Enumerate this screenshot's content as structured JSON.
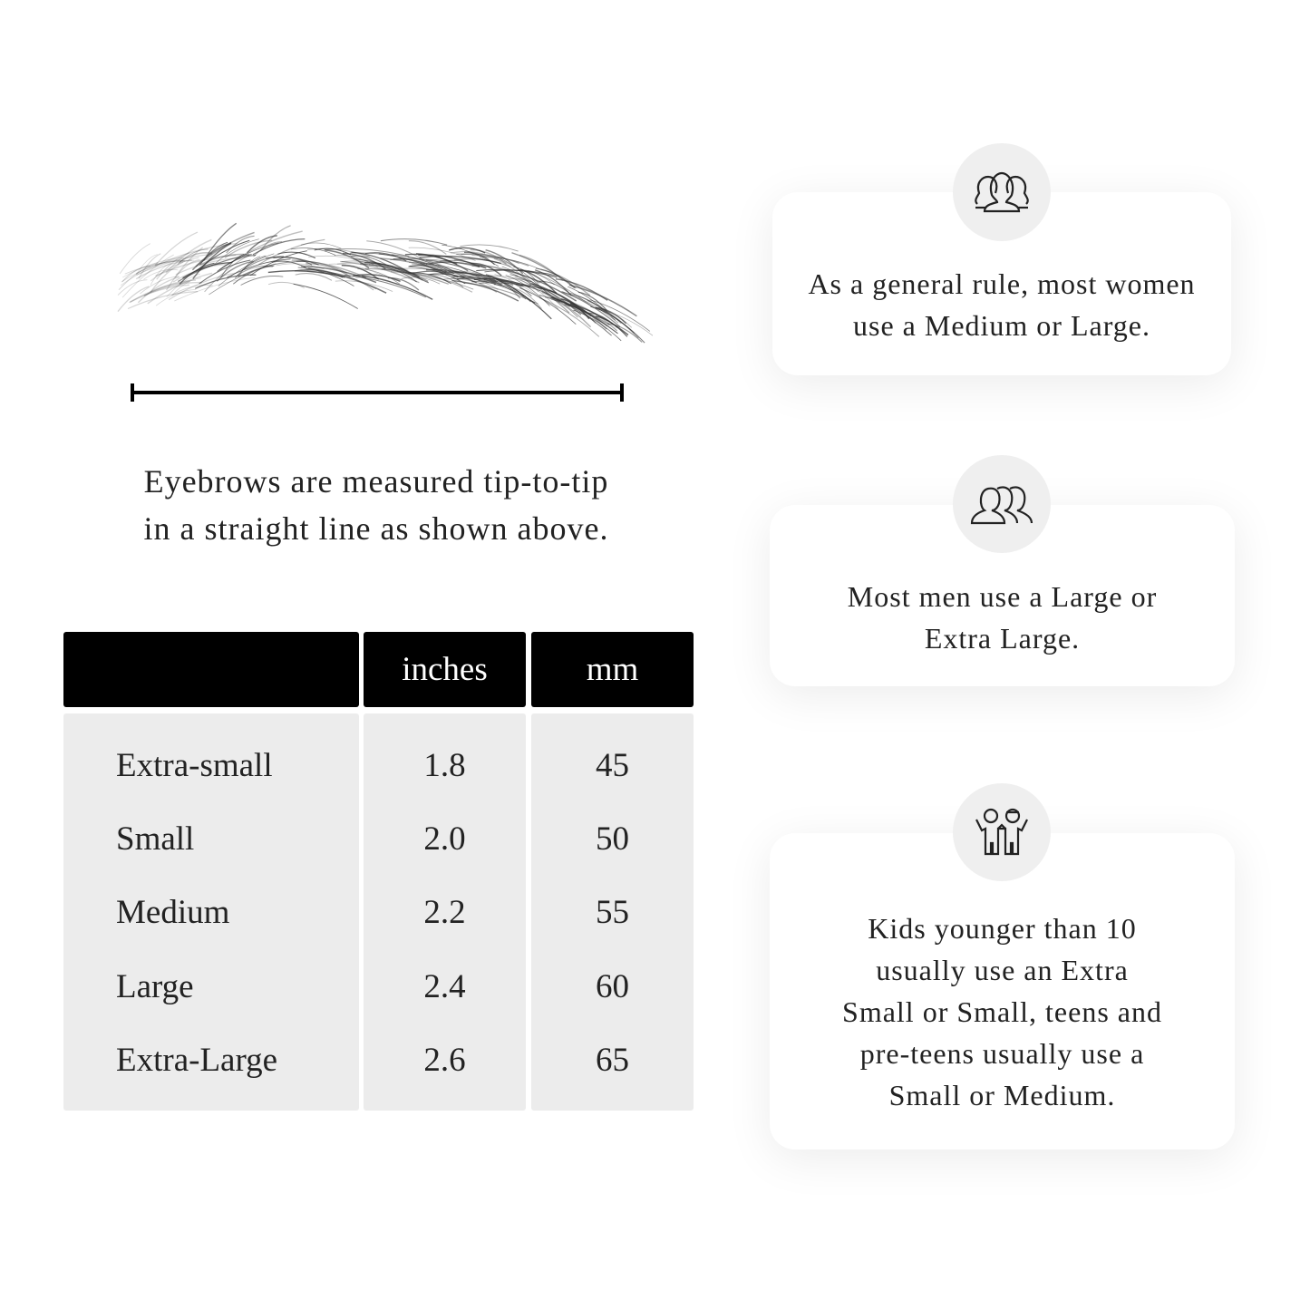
{
  "caption": {
    "line1": "Eyebrows are measured tip-to-tip",
    "line2": "in a straight line as shown above."
  },
  "table": {
    "headers": [
      "",
      "inches",
      "mm"
    ],
    "rows": [
      {
        "size": "Extra-small",
        "inches": "1.8",
        "mm": "45"
      },
      {
        "size": "Small",
        "inches": "2.0",
        "mm": "50"
      },
      {
        "size": "Medium",
        "inches": "2.2",
        "mm": "55"
      },
      {
        "size": "Large",
        "inches": "2.4",
        "mm": "60"
      },
      {
        "size": "Extra-Large",
        "inches": "2.6",
        "mm": "65"
      }
    ]
  },
  "cards": [
    {
      "icon": "women-group-icon",
      "lines": [
        "As a general rule, most women",
        "use a Medium or Large."
      ]
    },
    {
      "icon": "men-group-icon",
      "lines": [
        "Most men use a Large or",
        "Extra Large."
      ]
    },
    {
      "icon": "kids-icon",
      "lines": [
        "Kids younger than 10",
        "usually use an Extra",
        "Small or Small, teens and",
        "pre-teens usually use a",
        "Small or Medium."
      ]
    }
  ],
  "colors": {
    "header_bg": "#000000",
    "body_bg": "#ececec",
    "circle_bg": "#efefef"
  }
}
